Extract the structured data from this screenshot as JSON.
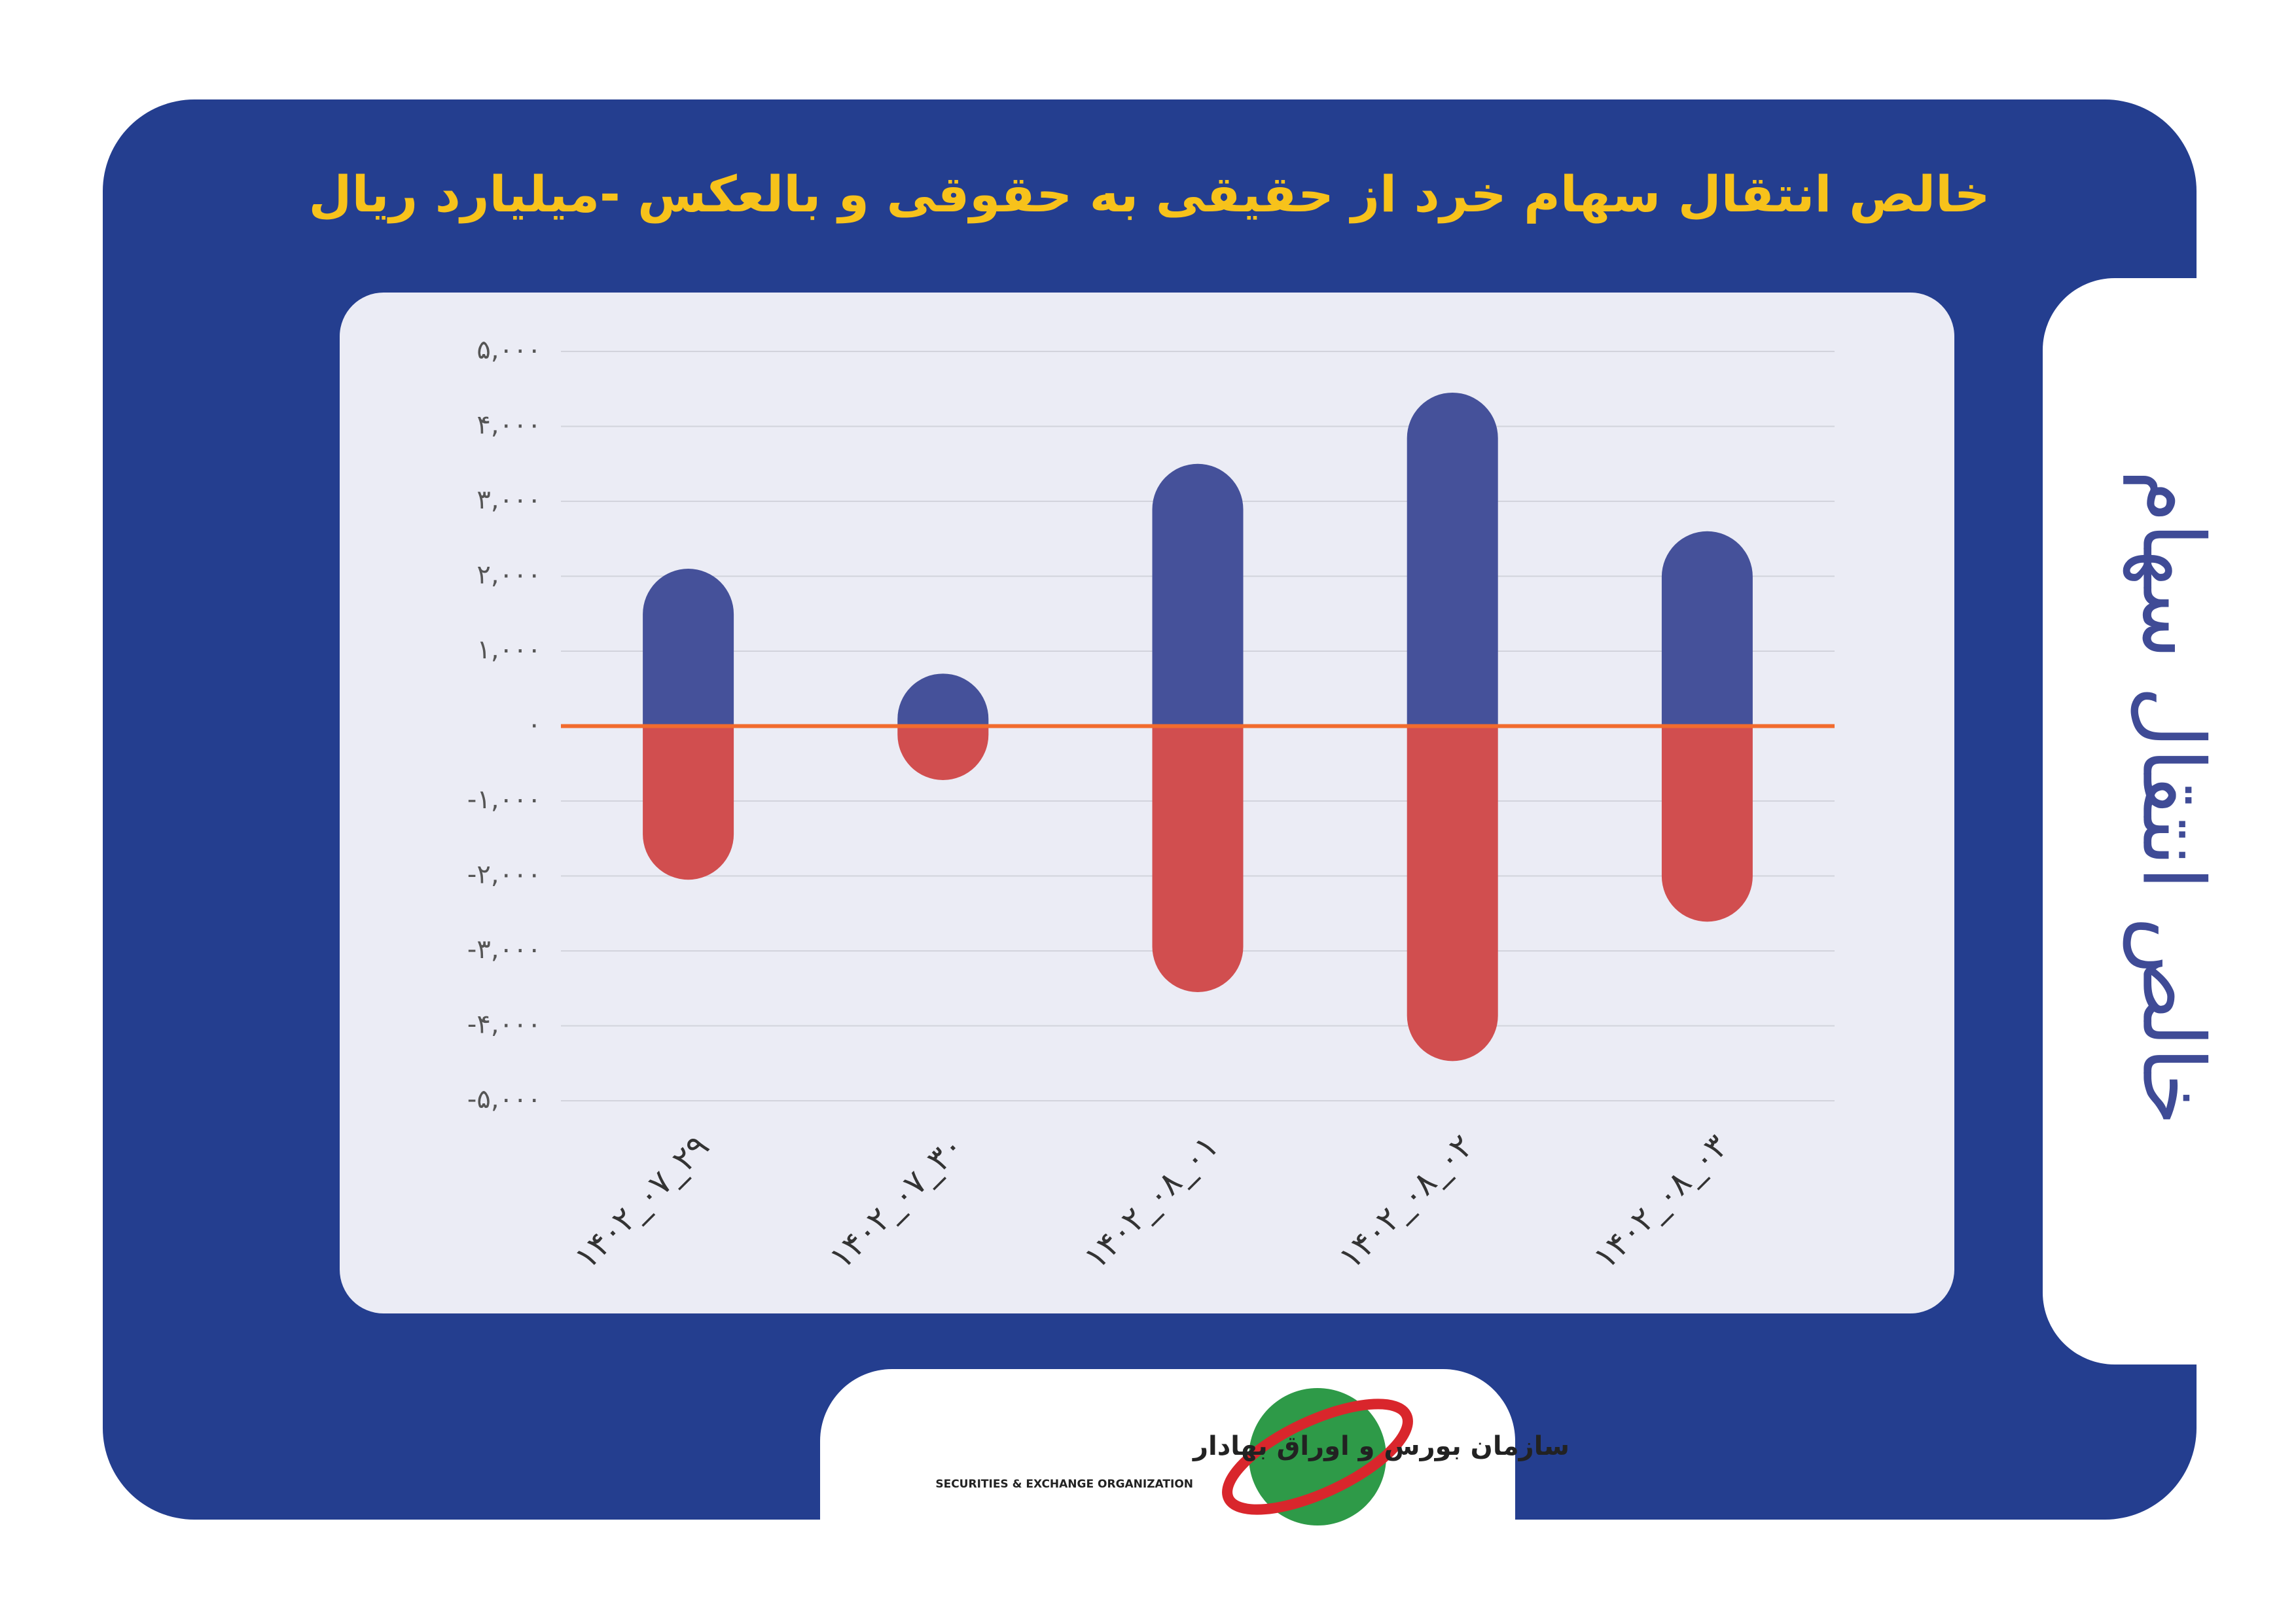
{
  "chart_data": {
    "type": "bar",
    "title": "خالص انتقال سهام خرد از حقیقی به حقوقی و بالعکس -میلیارد ریال",
    "categories": [
      "۱۴۰۲_۰۷_۲۹",
      "۱۴۰۲_۰۷_۳۰",
      "۱۴۰۲_۰۸_۰۱",
      "۱۴۰۲_۰۸_۰۲",
      "۱۴۰۲_۰۸_۰۳"
    ],
    "series": [
      {
        "color": "#45519a",
        "values": [
          2100,
          700,
          3500,
          4450,
          2600
        ]
      },
      {
        "color": "#d14e4f",
        "values": [
          -2050,
          -720,
          -3550,
          -4470,
          -2610
        ]
      }
    ],
    "ylim": [
      -5000,
      5000
    ],
    "yticks": [
      {
        "value": -5000,
        "label": "-۵,۰۰۰"
      },
      {
        "value": -4000,
        "label": "-۴,۰۰۰"
      },
      {
        "value": -3000,
        "label": "-۳,۰۰۰"
      },
      {
        "value": -2000,
        "label": "-۲,۰۰۰"
      },
      {
        "value": -1000,
        "label": "-۱,۰۰۰"
      },
      {
        "value": 0,
        "label": "۰"
      },
      {
        "value": 1000,
        "label": "۱,۰۰۰"
      },
      {
        "value": 2000,
        "label": "۲,۰۰۰"
      },
      {
        "value": 3000,
        "label": "۳,۰۰۰"
      },
      {
        "value": 4000,
        "label": "۴,۰۰۰"
      },
      {
        "value": 5000,
        "label": "۵,۰۰۰"
      }
    ],
    "grid": true,
    "zero_line_color": "#f26b2e"
  },
  "side_title": "خالص انتقال سهام",
  "logo": {
    "name_fa": "سازمان بورس و اوراق بهادار",
    "name_en": "SECURITIES & EXCHANGE ORGANIZATION"
  }
}
